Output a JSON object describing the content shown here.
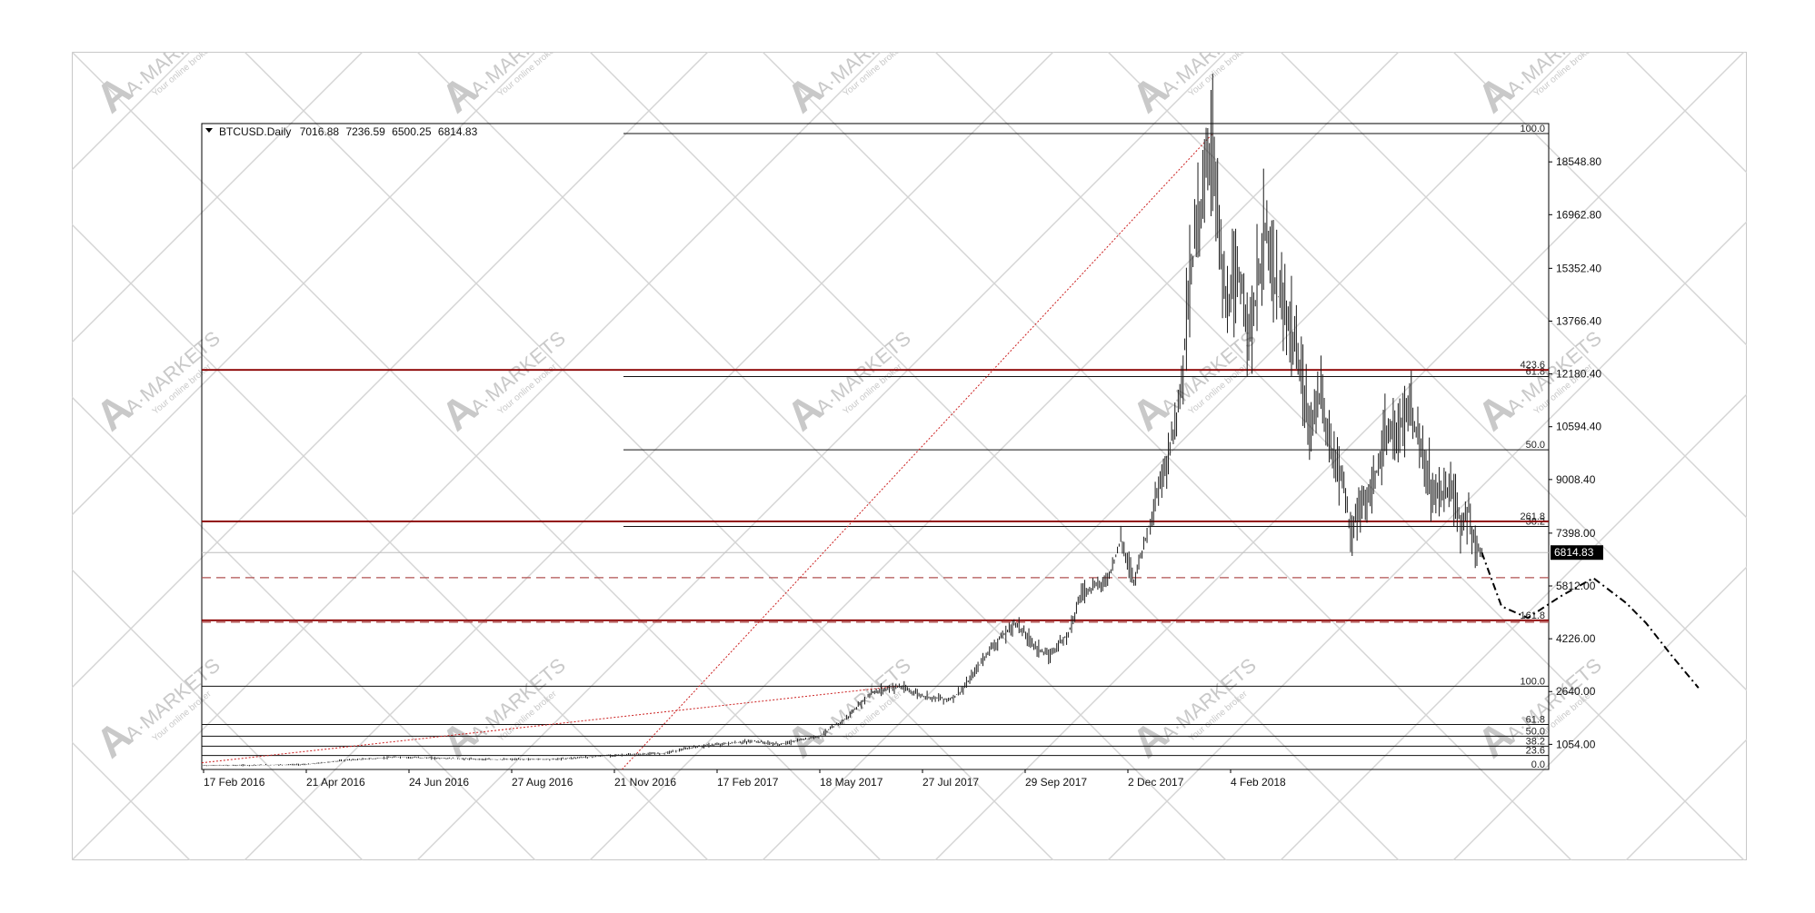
{
  "chart_data": {
    "type": "candlestick",
    "symbol": "BTCUSD",
    "timeframe": "Daily",
    "ohlc": {
      "open": "7016.88",
      "high": "7236.59",
      "low": "6500.25",
      "close": "6814.83"
    },
    "current_price": 6814.83,
    "current_price_label": "6814.83",
    "ylim": [
      300,
      19700
    ],
    "grid": false,
    "y_ticks": [
      "18548.80",
      "16962.80",
      "15352.40",
      "13766.40",
      "12180.40",
      "10594.40",
      "9008.40",
      "7398.00",
      "5812.00",
      "4226.00",
      "2640.00",
      "1054.00"
    ],
    "x_ticks": [
      "17 Feb 2016",
      "21 Apr 2016",
      "24 Jun 2016",
      "27 Aug 2016",
      "21 Nov 2016",
      "17 Feb 2017",
      "18 May 2017",
      "27 Jul 2017",
      "29 Sep 2017",
      "2 Dec 2017",
      "4 Feb 2018"
    ],
    "price_series": [
      {
        "t": 0.0,
        "p": 420
      },
      {
        "t": 0.04,
        "p": 430
      },
      {
        "t": 0.08,
        "p": 450
      },
      {
        "t": 0.11,
        "p": 580
      },
      {
        "t": 0.15,
        "p": 670
      },
      {
        "t": 0.18,
        "p": 640
      },
      {
        "t": 0.22,
        "p": 600
      },
      {
        "t": 0.27,
        "p": 610
      },
      {
        "t": 0.31,
        "p": 720
      },
      {
        "t": 0.35,
        "p": 780
      },
      {
        "t": 0.38,
        "p": 1000
      },
      {
        "t": 0.42,
        "p": 1150
      },
      {
        "t": 0.44,
        "p": 1050
      },
      {
        "t": 0.47,
        "p": 1300
      },
      {
        "t": 0.49,
        "p": 1800
      },
      {
        "t": 0.51,
        "p": 2600
      },
      {
        "t": 0.53,
        "p": 2800
      },
      {
        "t": 0.55,
        "p": 2500
      },
      {
        "t": 0.57,
        "p": 2400
      },
      {
        "t": 0.58,
        "p": 2700
      },
      {
        "t": 0.6,
        "p": 3900
      },
      {
        "t": 0.61,
        "p": 4300
      },
      {
        "t": 0.62,
        "p": 4700
      },
      {
        "t": 0.635,
        "p": 4000
      },
      {
        "t": 0.645,
        "p": 3700
      },
      {
        "t": 0.66,
        "p": 4400
      },
      {
        "t": 0.67,
        "p": 5600
      },
      {
        "t": 0.69,
        "p": 6000
      },
      {
        "t": 0.7,
        "p": 7200
      },
      {
        "t": 0.71,
        "p": 6000
      },
      {
        "t": 0.72,
        "p": 7400
      },
      {
        "t": 0.735,
        "p": 9500
      },
      {
        "t": 0.745,
        "p": 11500
      },
      {
        "t": 0.75,
        "p": 13800
      },
      {
        "t": 0.757,
        "p": 16500
      },
      {
        "t": 0.762,
        "p": 17500
      },
      {
        "t": 0.77,
        "p": 19300
      },
      {
        "t": 0.775,
        "p": 16500
      },
      {
        "t": 0.78,
        "p": 14000
      },
      {
        "t": 0.79,
        "p": 15000
      },
      {
        "t": 0.8,
        "p": 13500
      },
      {
        "t": 0.81,
        "p": 16500
      },
      {
        "t": 0.82,
        "p": 14500
      },
      {
        "t": 0.83,
        "p": 13500
      },
      {
        "t": 0.84,
        "p": 11500
      },
      {
        "t": 0.845,
        "p": 10500
      },
      {
        "t": 0.85,
        "p": 11700
      },
      {
        "t": 0.86,
        "p": 10000
      },
      {
        "t": 0.87,
        "p": 9000
      },
      {
        "t": 0.875,
        "p": 7300
      },
      {
        "t": 0.88,
        "p": 8000
      },
      {
        "t": 0.89,
        "p": 8500
      },
      {
        "t": 0.9,
        "p": 10000
      },
      {
        "t": 0.91,
        "p": 10500
      },
      {
        "t": 0.92,
        "p": 11000
      },
      {
        "t": 0.925,
        "p": 10500
      },
      {
        "t": 0.93,
        "p": 9500
      },
      {
        "t": 0.94,
        "p": 8500
      },
      {
        "t": 0.95,
        "p": 8800
      },
      {
        "t": 0.955,
        "p": 8200
      },
      {
        "t": 0.96,
        "p": 7600
      },
      {
        "t": 0.965,
        "p": 8100
      },
      {
        "t": 0.97,
        "p": 7000
      },
      {
        "t": 0.975,
        "p": 6814.83
      }
    ],
    "fib_retracement_upper": [
      {
        "label": "100.0",
        "value": 19400
      },
      {
        "label": "61.8",
        "value": 12100
      },
      {
        "label": "50.0",
        "value": 9900
      },
      {
        "label": "38.2",
        "value": 7600
      }
    ],
    "fib_retracement_lower": [
      {
        "label": "100.0",
        "value": 2800
      },
      {
        "label": "61.8",
        "value": 1650
      },
      {
        "label": "50.0",
        "value": 1300
      },
      {
        "label": "38.2",
        "value": 1000
      },
      {
        "label": "23.6",
        "value": 720
      },
      {
        "label": "0.0",
        "value": 300
      }
    ],
    "fib_extension": [
      {
        "label": "423.6",
        "value": 12300
      },
      {
        "label": "261.8",
        "value": 7750
      },
      {
        "label": "161.8",
        "value": 4780
      }
    ],
    "dashed_level": 6060,
    "projection": [
      {
        "t": 0.975,
        "p": 6814.83
      },
      {
        "t": 0.99,
        "p": 5200
      },
      {
        "t": 1.01,
        "p": 4850
      },
      {
        "t": 1.035,
        "p": 5500
      },
      {
        "t": 1.06,
        "p": 6050
      },
      {
        "t": 1.085,
        "p": 5300
      },
      {
        "t": 1.1,
        "p": 4700
      },
      {
        "t": 1.12,
        "p": 3700
      },
      {
        "t": 1.14,
        "p": 2750
      }
    ],
    "trend_line_1": [
      {
        "t": 0.0,
        "p": 500
      },
      {
        "t": 0.53,
        "p": 2800
      }
    ],
    "trend_line_2": [
      {
        "t": 0.32,
        "p": 300
      },
      {
        "t": 0.77,
        "p": 19400
      }
    ],
    "colors": {
      "extension_line": "#8b0000",
      "dashed_level": "#b05050",
      "trend_line": "#cc2020",
      "line": "#111111",
      "watermark": "#d4d4d4"
    }
  },
  "watermark": {
    "brand": "A·MARKETS",
    "slogan": "Your online broker"
  }
}
